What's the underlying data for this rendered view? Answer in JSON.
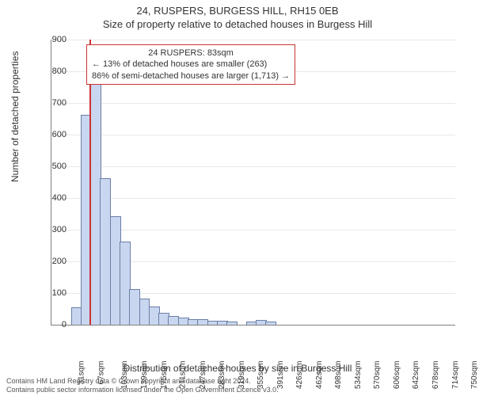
{
  "title_line1": "24, RUSPERS, BURGESS HILL, RH15 0EB",
  "title_line2": "Size of property relative to detached houses in Burgess Hill",
  "y_axis_label": "Number of detached properties",
  "x_axis_label": "Distribution of detached houses by size in Burgess Hill",
  "chart": {
    "type": "histogram",
    "xlim": [
      13,
      760
    ],
    "ylim": [
      0,
      900
    ],
    "ytick_step": 100,
    "yticks": [
      0,
      100,
      200,
      300,
      400,
      500,
      600,
      700,
      800,
      900
    ],
    "xtick_labels": [
      "31sqm",
      "67sqm",
      "103sqm",
      "139sqm",
      "175sqm",
      "211sqm",
      "247sqm",
      "283sqm",
      "319sqm",
      "355sqm",
      "391sqm",
      "426sqm",
      "462sqm",
      "498sqm",
      "534sqm",
      "570sqm",
      "606sqm",
      "642sqm",
      "678sqm",
      "714sqm",
      "750sqm"
    ],
    "xtick_positions": [
      31,
      67,
      103,
      139,
      175,
      211,
      247,
      283,
      319,
      355,
      391,
      426,
      462,
      498,
      534,
      570,
      606,
      642,
      678,
      714,
      750
    ],
    "bar_fill": "#c9d6ef",
    "bar_stroke": "#6a7fa8",
    "grid_color": "#e8e8e8",
    "marker_x": 83,
    "marker_color": "#cc3333",
    "bars": [
      {
        "x0": 49,
        "x1": 67,
        "y": 52
      },
      {
        "x0": 67,
        "x1": 85,
        "y": 660
      },
      {
        "x0": 85,
        "x1": 103,
        "y": 800
      },
      {
        "x0": 103,
        "x1": 121,
        "y": 460
      },
      {
        "x0": 121,
        "x1": 139,
        "y": 340
      },
      {
        "x0": 139,
        "x1": 157,
        "y": 260
      },
      {
        "x0": 157,
        "x1": 175,
        "y": 110
      },
      {
        "x0": 175,
        "x1": 193,
        "y": 80
      },
      {
        "x0": 193,
        "x1": 211,
        "y": 55
      },
      {
        "x0": 211,
        "x1": 229,
        "y": 35
      },
      {
        "x0": 229,
        "x1": 247,
        "y": 25
      },
      {
        "x0": 247,
        "x1": 265,
        "y": 20
      },
      {
        "x0": 265,
        "x1": 283,
        "y": 15
      },
      {
        "x0": 283,
        "x1": 301,
        "y": 15
      },
      {
        "x0": 301,
        "x1": 319,
        "y": 10
      },
      {
        "x0": 319,
        "x1": 337,
        "y": 10
      },
      {
        "x0": 337,
        "x1": 355,
        "y": 8
      },
      {
        "x0": 373,
        "x1": 391,
        "y": 8
      },
      {
        "x0": 391,
        "x1": 409,
        "y": 12
      },
      {
        "x0": 409,
        "x1": 427,
        "y": 8
      }
    ]
  },
  "annotation": {
    "line1": "24 RUSPERS: 83sqm",
    "line2": "← 13% of detached houses are smaller (263)",
    "line3": "86% of semi-detached houses are larger (1,713) →"
  },
  "copyright_line1": "Contains HM Land Registry data © Crown copyright and database right 2024.",
  "copyright_line2": "Contains public sector information licensed under the Open Government Licence v3.0."
}
